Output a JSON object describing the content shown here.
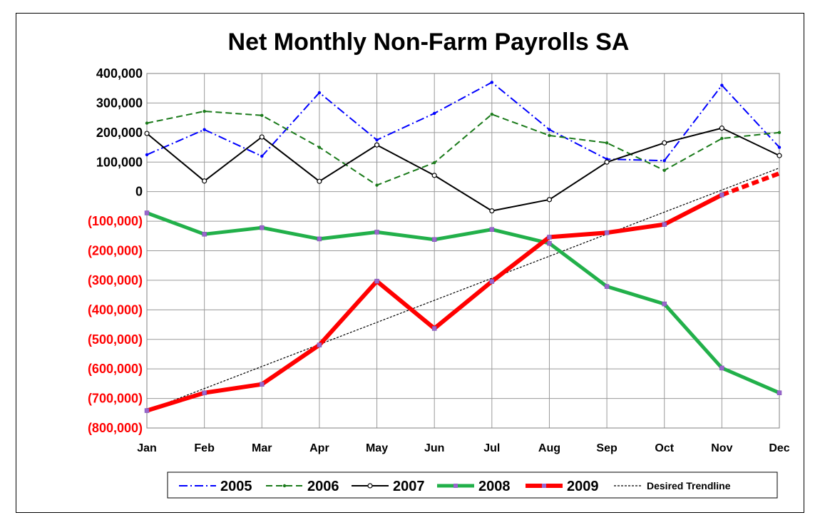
{
  "chart_data": {
    "type": "line",
    "title": "Net Monthly Non-Farm Payrolls SA",
    "xlabel": "",
    "ylabel": "",
    "categories": [
      "Jan",
      "Feb",
      "Mar",
      "Apr",
      "May",
      "Jun",
      "Jul",
      "Aug",
      "Sep",
      "Oct",
      "Nov",
      "Dec"
    ],
    "ylim": [
      -800000,
      400000
    ],
    "yticks": [
      400000,
      300000,
      200000,
      100000,
      0,
      -100000,
      -200000,
      -300000,
      -400000,
      -500000,
      -600000,
      -700000,
      -800000
    ],
    "ytick_labels": [
      "400,000",
      "300,000",
      "200,000",
      "100,000",
      "0",
      "(100,000)",
      "(200,000)",
      "(300,000)",
      "(400,000)",
      "(500,000)",
      "(600,000)",
      "(700,000)",
      "(800,000)"
    ],
    "grid": true,
    "legend_position": "bottom",
    "colors": {
      "positive_tick": "#000000",
      "negative_tick": "#ff0000"
    },
    "series": [
      {
        "name": "2005",
        "color": "#0000ff",
        "style": "dashdot",
        "values": [
          125000,
          210000,
          120000,
          335000,
          175000,
          265000,
          370000,
          210000,
          110000,
          105000,
          360000,
          150000
        ]
      },
      {
        "name": "2006",
        "color": "#1a7a1a",
        "style": "dashed",
        "values": [
          232000,
          272000,
          258000,
          150000,
          22000,
          98000,
          262000,
          190000,
          165000,
          72000,
          180000,
          200000
        ]
      },
      {
        "name": "2007",
        "color": "#000000",
        "style": "solid",
        "values": [
          197000,
          36000,
          185000,
          35000,
          158000,
          55000,
          -65000,
          -27000,
          100000,
          165000,
          215000,
          122000
        ]
      },
      {
        "name": "2008",
        "color": "#22b04a",
        "style": "thick",
        "values": [
          -72000,
          -144000,
          -122000,
          -160000,
          -137000,
          -162000,
          -128000,
          -175000,
          -321000,
          -380000,
          -597000,
          -681000
        ]
      },
      {
        "name": "2009",
        "color": "#ff0000",
        "style": "extra-thick",
        "values": [
          -741000,
          -681000,
          -652000,
          -519000,
          -303000,
          -463000,
          -304000,
          -154000,
          -139000,
          -111000,
          -11000,
          null
        ],
        "projection": [
          [
            10,
            -11000
          ],
          [
            11,
            62000
          ]
        ]
      },
      {
        "name": "Desired Trendline",
        "color": "#000000",
        "style": "thin-dotted",
        "values": [
          -741000,
          null,
          null,
          null,
          null,
          null,
          null,
          null,
          null,
          null,
          null,
          80000
        ]
      }
    ]
  }
}
